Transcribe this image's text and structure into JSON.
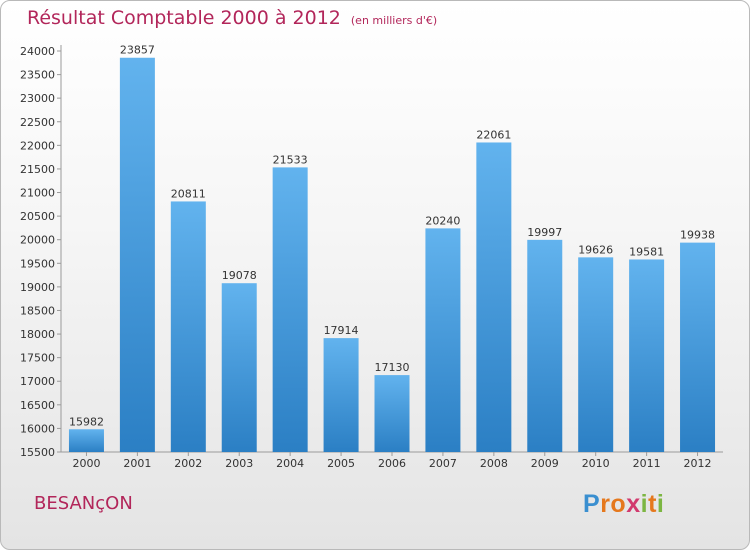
{
  "title": "Résultat Comptable 2000 à 2012",
  "unit": "(en milliers d'€)",
  "city": "BESANçON",
  "brand": {
    "letters": [
      "P",
      "r",
      "o",
      "x",
      "i",
      "t",
      "i"
    ],
    "colors": [
      "#3a8fd0",
      "#e5781d",
      "#e5781d",
      "#d23a6e",
      "#7cb642",
      "#e5781d",
      "#7cb642"
    ]
  },
  "colors": {
    "bar_top": "#62b3ee",
    "bar_bottom": "#2b7fc4",
    "accent": "#b2265a"
  },
  "chart_data": {
    "type": "bar",
    "title": "Résultat Comptable 2000 à 2012",
    "xlabel": "",
    "ylabel": "(en milliers d'€)",
    "categories": [
      "2000",
      "2001",
      "2002",
      "2003",
      "2004",
      "2005",
      "2006",
      "2007",
      "2008",
      "2009",
      "2010",
      "2011",
      "2012"
    ],
    "values": [
      15982,
      23857,
      20811,
      19078,
      21533,
      17914,
      17130,
      20240,
      22061,
      19997,
      19626,
      19581,
      19938
    ],
    "ylim": [
      15500,
      24000
    ],
    "yticks": [
      "15500",
      "16000",
      "16500",
      "17000",
      "17500",
      "18000",
      "18500",
      "19000",
      "19500",
      "20000",
      "20500",
      "21000",
      "21500",
      "22000",
      "22500",
      "23000",
      "23500",
      "24000"
    ],
    "grid": false
  }
}
